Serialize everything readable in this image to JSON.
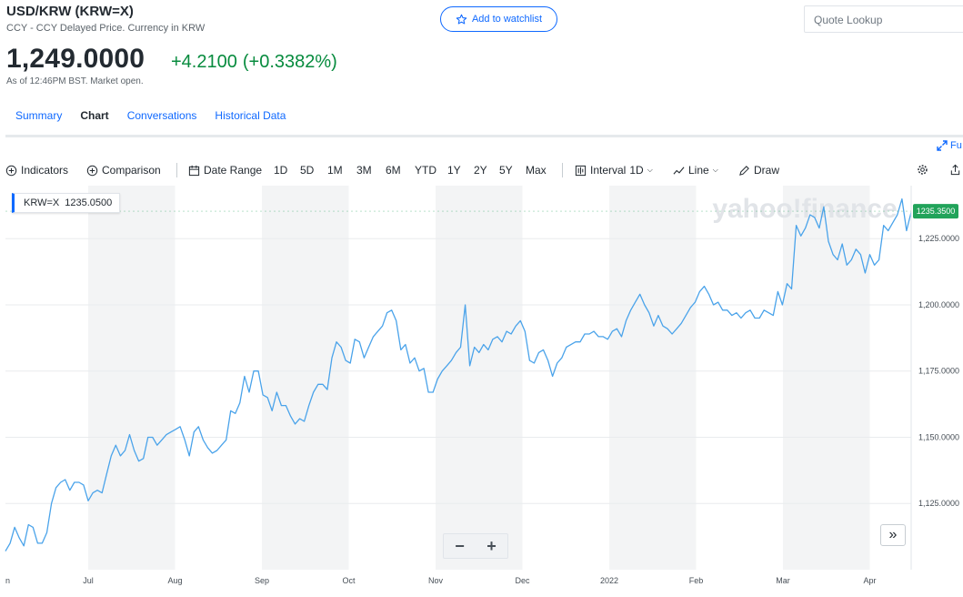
{
  "header": {
    "title": "USD/KRW (KRW=X)",
    "subtitle": "CCY - CCY Delayed Price. Currency in KRW",
    "price": "1,249.0000",
    "change": "+4.2100",
    "change_pct": "(+0.3382%)",
    "as_of": "As of 12:46PM BST. Market open.",
    "watchlist_label": "Add to watchlist",
    "quote_lookup_placeholder": "Quote Lookup"
  },
  "tabs": [
    {
      "label": "Summary",
      "active": false
    },
    {
      "label": "Chart",
      "active": true
    },
    {
      "label": "Conversations",
      "active": false
    },
    {
      "label": "Historical Data",
      "active": false
    }
  ],
  "fullscreen_label": "Fu",
  "toolbar": {
    "indicators": "Indicators",
    "comparison": "Comparison",
    "date_range": "Date Range",
    "ranges": [
      "1D",
      "5D",
      "1M",
      "3M",
      "6M",
      "YTD",
      "1Y",
      "2Y",
      "5Y",
      "Max"
    ],
    "interval_label": "Interval",
    "interval_value": "1D",
    "line_label": "Line",
    "draw_label": "Draw"
  },
  "legend": {
    "symbol": "KRW=X",
    "value": "1235.0500"
  },
  "watermark": "yahoo!finance",
  "zoom": {
    "minus": "−",
    "plus": "+"
  },
  "nav_arrow": "»",
  "colors": {
    "accent": "#0f69ff",
    "positive": "#078b3e",
    "series": "#4aa3ea",
    "price_flag": "#21a35a"
  },
  "chart_data": {
    "type": "line",
    "series": [
      {
        "name": "KRW=X",
        "values": [
          1107,
          1110,
          1116,
          1112,
          1109,
          1117,
          1116,
          1110,
          1110,
          1114,
          1125,
          1131,
          1133,
          1134,
          1130,
          1133,
          1133,
          1132,
          1126,
          1129,
          1130,
          1129,
          1136,
          1143,
          1147,
          1143,
          1145,
          1151,
          1145,
          1141,
          1142,
          1150,
          1150,
          1147,
          1149,
          1151,
          1152,
          1153,
          1154,
          1149,
          1143,
          1152,
          1154,
          1149,
          1146,
          1144,
          1145,
          1147,
          1149,
          1160,
          1159,
          1163,
          1173,
          1167,
          1175,
          1175,
          1166,
          1165,
          1160,
          1167,
          1162,
          1162,
          1158,
          1155,
          1157,
          1156,
          1162,
          1167,
          1170,
          1170,
          1168,
          1180,
          1186,
          1184,
          1179,
          1178,
          1187,
          1186,
          1180,
          1184,
          1188,
          1190,
          1192,
          1197,
          1198,
          1194,
          1183,
          1185,
          1178,
          1180,
          1175,
          1176,
          1167,
          1167,
          1172,
          1175,
          1177,
          1179,
          1182,
          1184,
          1200,
          1177,
          1184,
          1182,
          1185,
          1183,
          1187,
          1188,
          1186,
          1190,
          1189,
          1192,
          1194,
          1190,
          1179,
          1178,
          1182,
          1183,
          1179,
          1173,
          1178,
          1180,
          1184,
          1185,
          1186,
          1186,
          1189,
          1189,
          1190,
          1188,
          1188,
          1187,
          1190,
          1191,
          1188,
          1194,
          1198,
          1201,
          1204,
          1200,
          1197,
          1192,
          1196,
          1192,
          1191,
          1189,
          1191,
          1193,
          1196,
          1199,
          1201,
          1205,
          1207,
          1204,
          1200,
          1201,
          1198,
          1198,
          1196,
          1197,
          1195,
          1197,
          1198,
          1195,
          1195,
          1198,
          1197,
          1196,
          1205,
          1200,
          1208,
          1206,
          1230,
          1226,
          1229,
          1234,
          1233,
          1229,
          1237,
          1224,
          1219,
          1217,
          1223,
          1215,
          1217,
          1221,
          1219,
          1212,
          1219,
          1215,
          1217,
          1230,
          1228,
          1231,
          1234,
          1240,
          1228,
          1235
        ]
      }
    ],
    "x_labels": [
      "n",
      "Jul",
      "Aug",
      "Sep",
      "Oct",
      "Nov",
      "Dec",
      "2022",
      "Feb",
      "Mar",
      "Apr"
    ],
    "y_ticks": [
      "1,125.0000",
      "1,150.0000",
      "1,175.0000",
      "1,200.0000",
      "1,225.0000"
    ],
    "y_tick_values": [
      1125,
      1150,
      1175,
      1200,
      1225
    ],
    "ylim": [
      1100,
      1245
    ],
    "last_price_label": "1235.3500",
    "last_price_value": 1235.35,
    "grid": true
  }
}
